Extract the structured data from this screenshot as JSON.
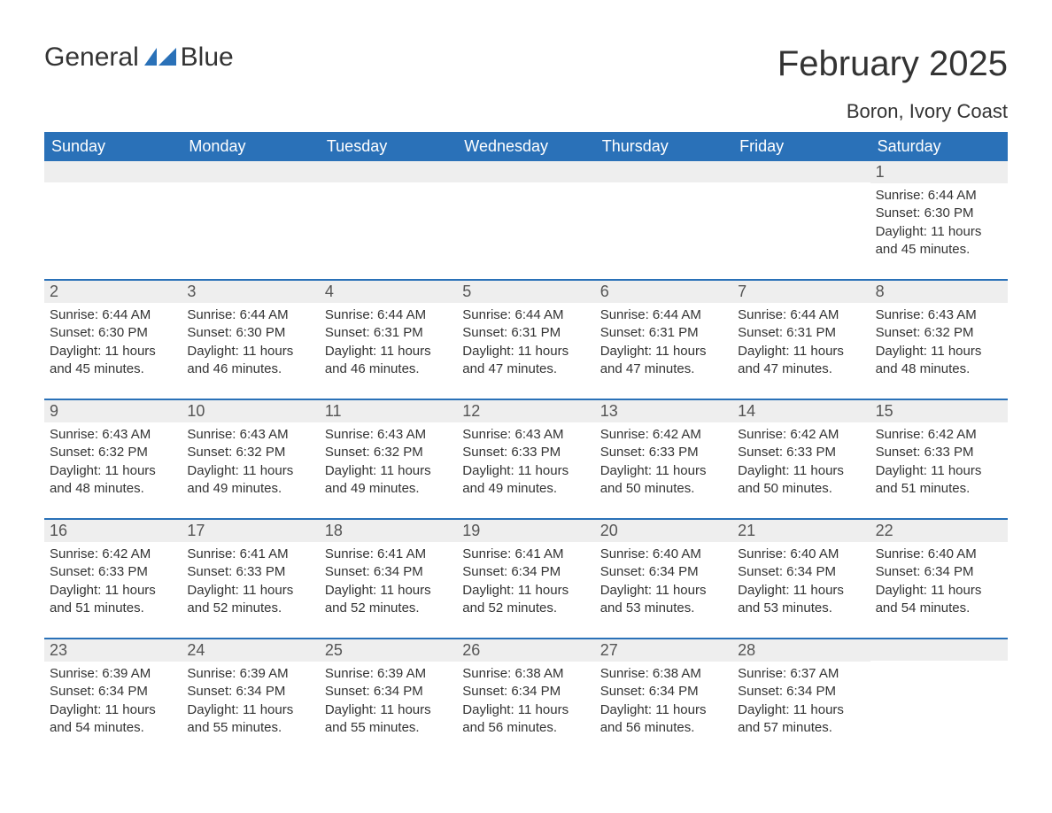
{
  "logo": {
    "text1": "General",
    "text2": "Blue",
    "color_gray": "#333333",
    "color_blue": "#2a71b8",
    "icon_color": "#2a71b8"
  },
  "header": {
    "month_title": "February 2025",
    "location": "Boron, Ivory Coast"
  },
  "styling": {
    "background_color": "#ffffff",
    "header_bg": "#2a71b8",
    "header_text_color": "#ffffff",
    "daynum_bg": "#eeeeee",
    "daynum_color": "#555555",
    "body_text_color": "#333333",
    "row_border_color": "#2a71b8",
    "weekday_fontsize": 18,
    "title_fontsize": 40,
    "location_fontsize": 22,
    "body_fontsize": 15
  },
  "weekdays": [
    "Sunday",
    "Monday",
    "Tuesday",
    "Wednesday",
    "Thursday",
    "Friday",
    "Saturday"
  ],
  "labels": {
    "sunrise": "Sunrise: ",
    "sunset": "Sunset: ",
    "daylight_prefix": "Daylight: ",
    "daylight_suffix": "."
  },
  "weeks": [
    [
      {
        "day": "",
        "empty": true
      },
      {
        "day": "",
        "empty": true
      },
      {
        "day": "",
        "empty": true
      },
      {
        "day": "",
        "empty": true
      },
      {
        "day": "",
        "empty": true
      },
      {
        "day": "",
        "empty": true
      },
      {
        "day": "1",
        "sunrise": "6:44 AM",
        "sunset": "6:30 PM",
        "daylight": "11 hours and 45 minutes"
      }
    ],
    [
      {
        "day": "2",
        "sunrise": "6:44 AM",
        "sunset": "6:30 PM",
        "daylight": "11 hours and 45 minutes"
      },
      {
        "day": "3",
        "sunrise": "6:44 AM",
        "sunset": "6:30 PM",
        "daylight": "11 hours and 46 minutes"
      },
      {
        "day": "4",
        "sunrise": "6:44 AM",
        "sunset": "6:31 PM",
        "daylight": "11 hours and 46 minutes"
      },
      {
        "day": "5",
        "sunrise": "6:44 AM",
        "sunset": "6:31 PM",
        "daylight": "11 hours and 47 minutes"
      },
      {
        "day": "6",
        "sunrise": "6:44 AM",
        "sunset": "6:31 PM",
        "daylight": "11 hours and 47 minutes"
      },
      {
        "day": "7",
        "sunrise": "6:44 AM",
        "sunset": "6:31 PM",
        "daylight": "11 hours and 47 minutes"
      },
      {
        "day": "8",
        "sunrise": "6:43 AM",
        "sunset": "6:32 PM",
        "daylight": "11 hours and 48 minutes"
      }
    ],
    [
      {
        "day": "9",
        "sunrise": "6:43 AM",
        "sunset": "6:32 PM",
        "daylight": "11 hours and 48 minutes"
      },
      {
        "day": "10",
        "sunrise": "6:43 AM",
        "sunset": "6:32 PM",
        "daylight": "11 hours and 49 minutes"
      },
      {
        "day": "11",
        "sunrise": "6:43 AM",
        "sunset": "6:32 PM",
        "daylight": "11 hours and 49 minutes"
      },
      {
        "day": "12",
        "sunrise": "6:43 AM",
        "sunset": "6:33 PM",
        "daylight": "11 hours and 49 minutes"
      },
      {
        "day": "13",
        "sunrise": "6:42 AM",
        "sunset": "6:33 PM",
        "daylight": "11 hours and 50 minutes"
      },
      {
        "day": "14",
        "sunrise": "6:42 AM",
        "sunset": "6:33 PM",
        "daylight": "11 hours and 50 minutes"
      },
      {
        "day": "15",
        "sunrise": "6:42 AM",
        "sunset": "6:33 PM",
        "daylight": "11 hours and 51 minutes"
      }
    ],
    [
      {
        "day": "16",
        "sunrise": "6:42 AM",
        "sunset": "6:33 PM",
        "daylight": "11 hours and 51 minutes"
      },
      {
        "day": "17",
        "sunrise": "6:41 AM",
        "sunset": "6:33 PM",
        "daylight": "11 hours and 52 minutes"
      },
      {
        "day": "18",
        "sunrise": "6:41 AM",
        "sunset": "6:34 PM",
        "daylight": "11 hours and 52 minutes"
      },
      {
        "day": "19",
        "sunrise": "6:41 AM",
        "sunset": "6:34 PM",
        "daylight": "11 hours and 52 minutes"
      },
      {
        "day": "20",
        "sunrise": "6:40 AM",
        "sunset": "6:34 PM",
        "daylight": "11 hours and 53 minutes"
      },
      {
        "day": "21",
        "sunrise": "6:40 AM",
        "sunset": "6:34 PM",
        "daylight": "11 hours and 53 minutes"
      },
      {
        "day": "22",
        "sunrise": "6:40 AM",
        "sunset": "6:34 PM",
        "daylight": "11 hours and 54 minutes"
      }
    ],
    [
      {
        "day": "23",
        "sunrise": "6:39 AM",
        "sunset": "6:34 PM",
        "daylight": "11 hours and 54 minutes"
      },
      {
        "day": "24",
        "sunrise": "6:39 AM",
        "sunset": "6:34 PM",
        "daylight": "11 hours and 55 minutes"
      },
      {
        "day": "25",
        "sunrise": "6:39 AM",
        "sunset": "6:34 PM",
        "daylight": "11 hours and 55 minutes"
      },
      {
        "day": "26",
        "sunrise": "6:38 AM",
        "sunset": "6:34 PM",
        "daylight": "11 hours and 56 minutes"
      },
      {
        "day": "27",
        "sunrise": "6:38 AM",
        "sunset": "6:34 PM",
        "daylight": "11 hours and 56 minutes"
      },
      {
        "day": "28",
        "sunrise": "6:37 AM",
        "sunset": "6:34 PM",
        "daylight": "11 hours and 57 minutes"
      },
      {
        "day": "",
        "empty": true
      }
    ]
  ]
}
